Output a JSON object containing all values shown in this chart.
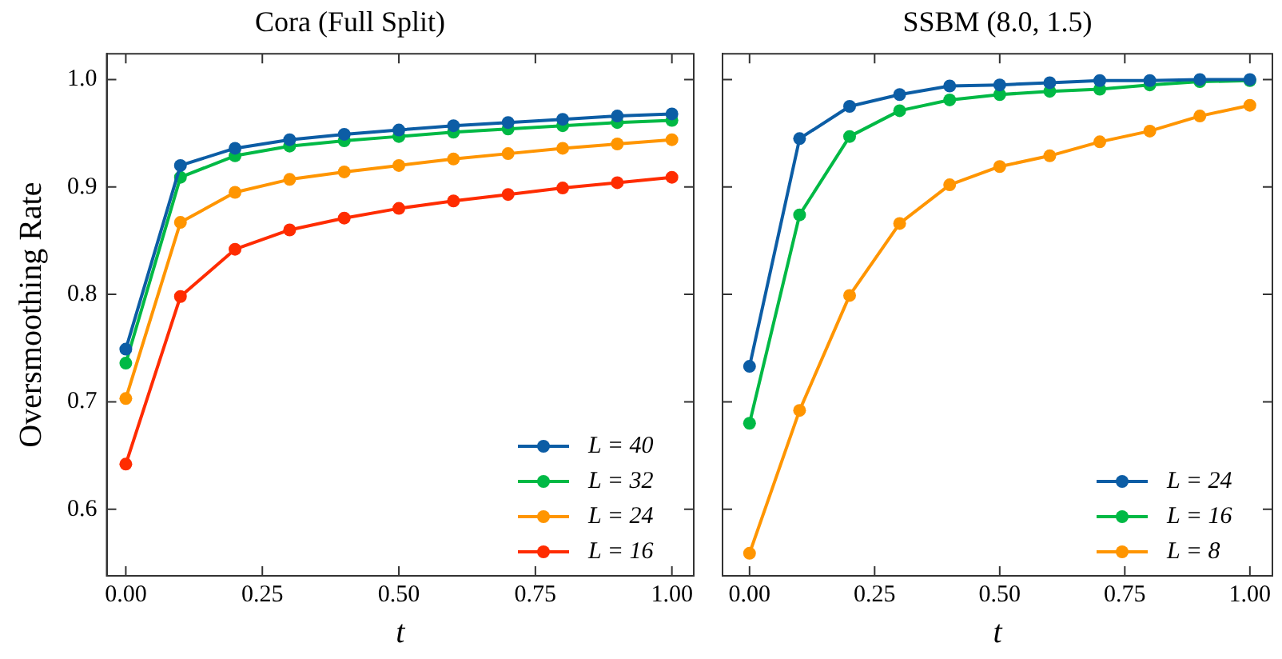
{
  "chart_data": [
    {
      "type": "line",
      "title": "Cora (Full Split)",
      "xlabel": "t",
      "ylabel": "Oversmoothing Rate",
      "x": [
        0,
        0.1,
        0.2,
        0.3,
        0.4,
        0.5,
        0.6,
        0.7,
        0.8,
        0.9,
        1.0
      ],
      "series": [
        {
          "name": "L = 40",
          "color": "#0c5da5",
          "values": [
            0.749,
            0.92,
            0.936,
            0.944,
            0.949,
            0.953,
            0.957,
            0.96,
            0.963,
            0.966,
            0.968
          ]
        },
        {
          "name": "L = 32",
          "color": "#00b945",
          "values": [
            0.736,
            0.909,
            0.929,
            0.938,
            0.943,
            0.947,
            0.951,
            0.954,
            0.957,
            0.96,
            0.962
          ]
        },
        {
          "name": "L = 24",
          "color": "#ff9500",
          "values": [
            0.703,
            0.867,
            0.895,
            0.907,
            0.914,
            0.92,
            0.926,
            0.931,
            0.936,
            0.94,
            0.944
          ]
        },
        {
          "name": "L = 16",
          "color": "#ff2c00",
          "values": [
            0.642,
            0.798,
            0.842,
            0.86,
            0.871,
            0.88,
            0.887,
            0.893,
            0.899,
            0.904,
            0.909
          ]
        }
      ],
      "xlim": [
        -0.035,
        1.04
      ],
      "xticks": [
        {
          "value": 0,
          "label": "0.00"
        },
        {
          "value": 0.25,
          "label": "0.25"
        },
        {
          "value": 0.5,
          "label": "0.50"
        },
        {
          "value": 0.75,
          "label": "0.75"
        },
        {
          "value": 1,
          "label": "1.00"
        }
      ],
      "ylim": [
        0.538,
        1.024
      ],
      "yticks": [
        0.6,
        0.7,
        0.8,
        0.9,
        {
          "value": 1,
          "label": "1.0"
        }
      ],
      "grid": false,
      "legend": "bottom right",
      "marker": "circle",
      "line_style": "solid"
    },
    {
      "type": "line",
      "title": "SSBM (8.0, 1.5)",
      "xlabel": "t",
      "x": [
        0,
        0.1,
        0.2,
        0.3,
        0.4,
        0.5,
        0.6,
        0.7,
        0.8,
        0.9,
        1.0
      ],
      "series": [
        {
          "name": "L = 24",
          "color": "#0c5da5",
          "values": [
            0.733,
            0.945,
            0.975,
            0.986,
            0.994,
            0.995,
            0.997,
            0.999,
            0.999,
            1.0,
            1.0
          ]
        },
        {
          "name": "L = 16",
          "color": "#00b945",
          "values": [
            0.68,
            0.874,
            0.947,
            0.971,
            0.981,
            0.986,
            0.989,
            0.991,
            0.995,
            0.998,
            0.999
          ]
        },
        {
          "name": "L = 8",
          "color": "#ff9500",
          "values": [
            0.559,
            0.692,
            0.799,
            0.866,
            0.902,
            0.919,
            0.929,
            0.942,
            0.952,
            0.966,
            0.976
          ]
        }
      ],
      "xlim": [
        -0.054,
        1.045
      ],
      "xticks": [
        {
          "value": 0,
          "label": "0.00"
        },
        {
          "value": 0.25,
          "label": "0.25"
        },
        {
          "value": 0.5,
          "label": "0.50"
        },
        {
          "value": 0.75,
          "label": "0.75"
        },
        {
          "value": 1,
          "label": "1.00"
        }
      ],
      "ylim": [
        0.538,
        1.024
      ],
      "yticks": [
        0.6,
        0.7,
        0.8,
        0.9,
        1
      ],
      "tick_labels": "x",
      "grid": false,
      "legend": "bottom right",
      "marker": "circle",
      "line_style": "solid"
    }
  ]
}
